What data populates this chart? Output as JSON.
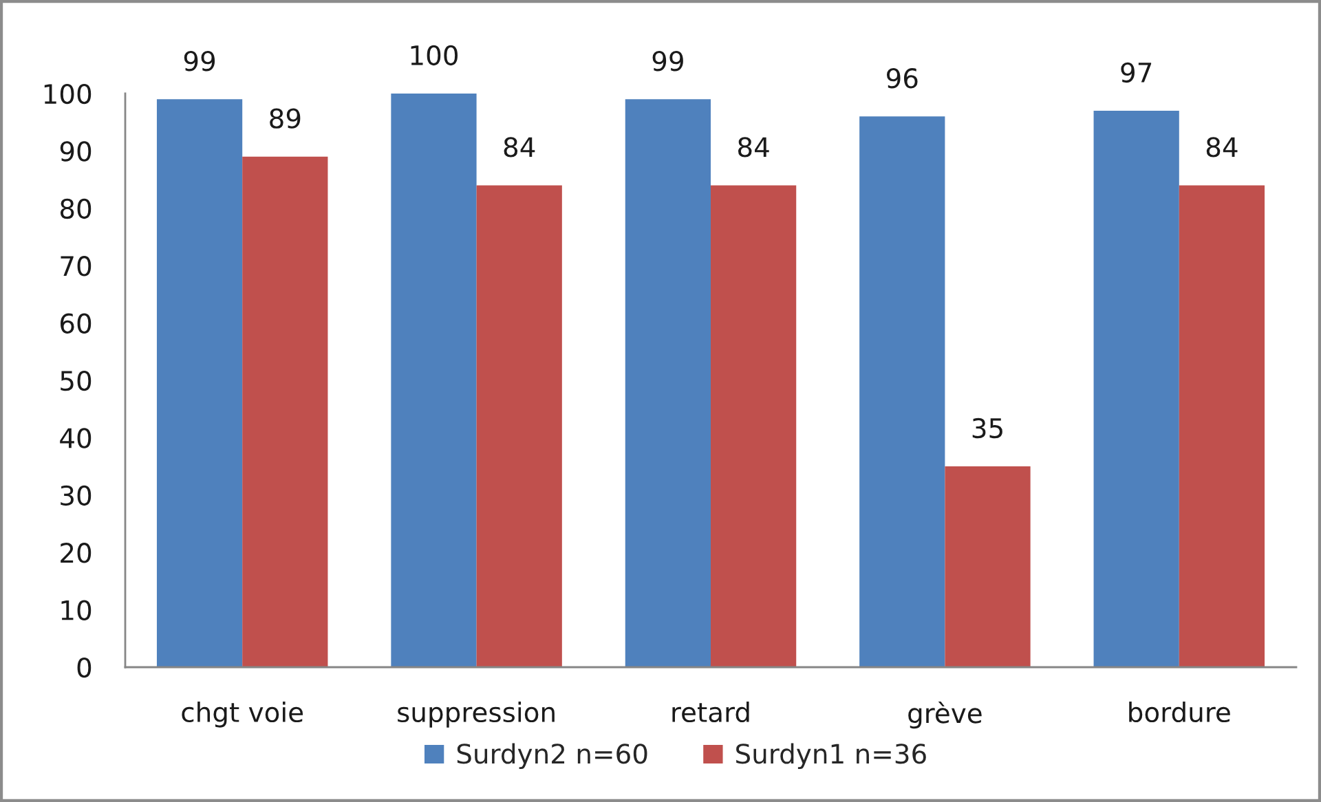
{
  "chart_data": {
    "type": "bar",
    "categories": [
      "chgt voie",
      "suppression",
      "retard",
      "grève",
      "bordure"
    ],
    "series": [
      {
        "name": "Surdyn2 n=60",
        "color": "#4f81bd",
        "values": [
          99,
          100,
          99,
          96,
          97
        ]
      },
      {
        "name": "Surdyn1 n=36",
        "color": "#c0504d",
        "values": [
          89,
          84,
          84,
          35,
          84
        ]
      }
    ],
    "ylim": [
      0,
      100
    ],
    "yticks": [
      0,
      10,
      20,
      30,
      40,
      50,
      60,
      70,
      80,
      90,
      100
    ],
    "data_labels": true,
    "legend": "bottom",
    "grid": false
  }
}
